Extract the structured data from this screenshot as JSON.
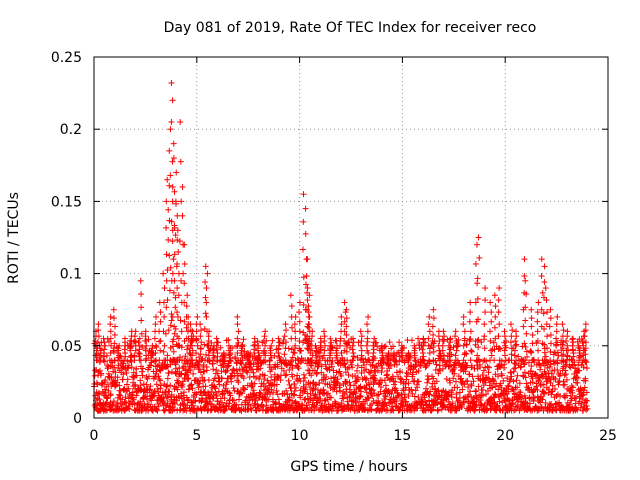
{
  "chart_data": {
    "type": "scatter",
    "title": "Day 081 of 2019, Rate Of TEC Index for receiver reco",
    "xlabel": "GPS time / hours",
    "ylabel": "ROTI / TECUs",
    "xlim": [
      0,
      25
    ],
    "ylim": [
      0,
      0.25
    ],
    "xticks": [
      0,
      5,
      10,
      15,
      20,
      25
    ],
    "yticks": [
      0,
      0.05,
      0.1,
      0.15,
      0.2,
      0.25
    ],
    "xtick_labels": [
      "0",
      "5",
      "10",
      "15",
      "20",
      "25"
    ],
    "ytick_labels": [
      "0",
      "0.05",
      "0.1",
      "0.15",
      "0.2",
      "0.25"
    ],
    "grid": true,
    "marker": "plus",
    "color": "#ff0000",
    "series": [
      {
        "name": "ROTI",
        "x": [
          0.1,
          0.2,
          0.3,
          0.5,
          0.8,
          1.0,
          1.2,
          1.5,
          1.8,
          2.0,
          2.2,
          2.3,
          2.5,
          2.8,
          3.0,
          3.2,
          3.4,
          3.5,
          3.6,
          3.7,
          3.75,
          3.8,
          3.85,
          3.9,
          3.95,
          4.0,
          4.05,
          4.1,
          4.2,
          4.3,
          4.4,
          4.5,
          4.6,
          4.7,
          4.8,
          5.0,
          5.2,
          5.4,
          5.5,
          5.6,
          5.8,
          6.0,
          6.3,
          6.6,
          7.0,
          7.2,
          7.5,
          7.8,
          8.0,
          8.3,
          8.6,
          9.0,
          9.3,
          9.6,
          9.8,
          10.0,
          10.2,
          10.3,
          10.35,
          10.4,
          10.45,
          10.5,
          10.6,
          10.8,
          11.0,
          11.2,
          11.5,
          11.8,
          12.0,
          12.2,
          12.3,
          12.6,
          13.0,
          13.3,
          13.6,
          14.0,
          14.3,
          14.6,
          15.0,
          15.3,
          15.6,
          16.0,
          16.3,
          16.5,
          16.8,
          17.0,
          17.3,
          17.6,
          18.0,
          18.3,
          18.6,
          18.7,
          19.0,
          19.3,
          19.5,
          19.7,
          20.0,
          20.3,
          20.5,
          20.9,
          21.0,
          21.3,
          21.6,
          21.8,
          21.9,
          22.0,
          22.2,
          22.5,
          22.8,
          23.0,
          23.3,
          23.6,
          23.8,
          23.9
        ],
        "y": [
          0.06,
          0.065,
          0.05,
          0.055,
          0.07,
          0.075,
          0.05,
          0.055,
          0.06,
          0.06,
          0.055,
          0.095,
          0.06,
          0.05,
          0.07,
          0.08,
          0.1,
          0.15,
          0.165,
          0.185,
          0.232,
          0.205,
          0.22,
          0.18,
          0.15,
          0.17,
          0.14,
          0.13,
          0.205,
          0.16,
          0.12,
          0.085,
          0.07,
          0.065,
          0.06,
          0.07,
          0.065,
          0.105,
          0.1,
          0.06,
          0.05,
          0.055,
          0.045,
          0.05,
          0.07,
          0.05,
          0.045,
          0.055,
          0.05,
          0.06,
          0.05,
          0.055,
          0.065,
          0.085,
          0.07,
          0.08,
          0.155,
          0.145,
          0.11,
          0.09,
          0.085,
          0.07,
          0.06,
          0.05,
          0.055,
          0.06,
          0.05,
          0.05,
          0.07,
          0.08,
          0.075,
          0.055,
          0.06,
          0.07,
          0.055,
          0.05,
          0.045,
          0.045,
          0.05,
          0.045,
          0.05,
          0.055,
          0.07,
          0.075,
          0.06,
          0.06,
          0.055,
          0.06,
          0.07,
          0.08,
          0.12,
          0.125,
          0.09,
          0.08,
          0.085,
          0.09,
          0.06,
          0.065,
          0.06,
          0.11,
          0.095,
          0.075,
          0.08,
          0.11,
          0.105,
          0.09,
          0.075,
          0.07,
          0.065,
          0.06,
          0.055,
          0.05,
          0.06,
          0.065
        ]
      }
    ],
    "background_band": {
      "from": 0.005,
      "to": 0.04,
      "density": "dense"
    }
  }
}
